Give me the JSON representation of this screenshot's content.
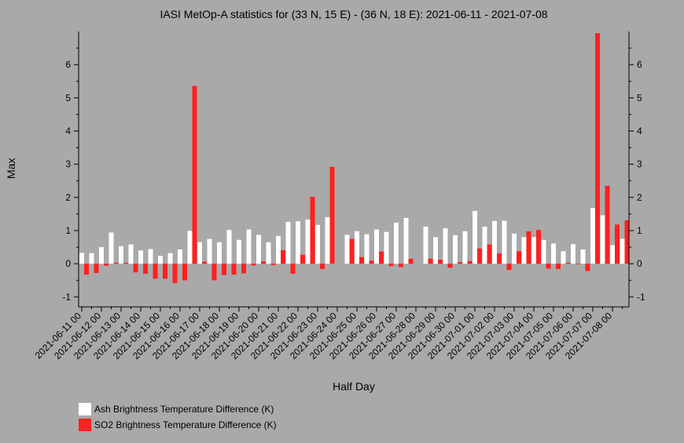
{
  "chart_data": {
    "type": "bar",
    "title": "IASI MetOp-A statistics for (33 N, 15 E) - (36 N, 18 E): 2021-06-11 - 2021-07-08",
    "xlabel": "Half Day",
    "ylabel": "Max",
    "ylim": [
      -1.3,
      7.0
    ],
    "yticks": [
      -1,
      0,
      1,
      2,
      3,
      4,
      5,
      6
    ],
    "categories": [
      "2021-06-11 00",
      "2021-06-11 12",
      "2021-06-12 00",
      "2021-06-12 12",
      "2021-06-13 00",
      "2021-06-13 12",
      "2021-06-14 00",
      "2021-06-14 12",
      "2021-06-15 00",
      "2021-06-15 12",
      "2021-06-16 00",
      "2021-06-16 12",
      "2021-06-17 00",
      "2021-06-17 12",
      "2021-06-18 00",
      "2021-06-18 12",
      "2021-06-19 00",
      "2021-06-19 12",
      "2021-06-20 00",
      "2021-06-20 12",
      "2021-06-21 00",
      "2021-06-21 12",
      "2021-06-22 00",
      "2021-06-22 12",
      "2021-06-23 00",
      "2021-06-23 12",
      "2021-06-24 00",
      "2021-06-24 12",
      "2021-06-25 00",
      "2021-06-25 12",
      "2021-06-26 00",
      "2021-06-26 12",
      "2021-06-27 00",
      "2021-06-27 12",
      "2021-06-28 00",
      "2021-06-28 12",
      "2021-06-29 00",
      "2021-06-29 12",
      "2021-06-30 00",
      "2021-06-30 12",
      "2021-07-01 00",
      "2021-07-01 12",
      "2021-07-02 00",
      "2021-07-02 12",
      "2021-07-03 00",
      "2021-07-03 12",
      "2021-07-04 00",
      "2021-07-04 12",
      "2021-07-05 00",
      "2021-07-05 12",
      "2021-07-06 00",
      "2021-07-06 12",
      "2021-07-07 00",
      "2021-07-07 12",
      "2021-07-08 00",
      "2021-07-08 12"
    ],
    "tick_labels": [
      "2021-06-11 00",
      "2021-06-12 00",
      "2021-06-13 00",
      "2021-06-14 00",
      "2021-06-15 00",
      "2021-06-16 00",
      "2021-06-17 00",
      "2021-06-18 00",
      "2021-06-19 00",
      "2021-06-20 00",
      "2021-06-21 00",
      "2021-06-22 00",
      "2021-06-23 00",
      "2021-06-24 00",
      "2021-06-25 00",
      "2021-06-26 00",
      "2021-06-27 00",
      "2021-06-28 00",
      "2021-06-29 00",
      "2021-06-30 00",
      "2021-07-01 00",
      "2021-07-02 00",
      "2021-07-03 00",
      "2021-07-04 00",
      "2021-07-05 00",
      "2021-07-06 00",
      "2021-07-07 00",
      "2021-07-08 00"
    ],
    "series": [
      {
        "name": "Ash Brightness Temperature Difference (K)",
        "color": "#ffffff",
        "values": [
          0.33,
          0.32,
          0.5,
          0.94,
          0.53,
          0.58,
          0.4,
          0.44,
          0.24,
          0.32,
          0.43,
          0.99,
          0.65,
          0.75,
          0.65,
          1.02,
          0.72,
          1.03,
          0.87,
          0.65,
          0.84,
          1.26,
          1.28,
          1.33,
          1.17,
          1.4,
          null,
          0.87,
          0.98,
          0.89,
          1.03,
          0.96,
          1.24,
          1.38,
          null,
          1.12,
          0.8,
          1.07,
          0.86,
          0.98,
          1.59,
          1.12,
          1.29,
          1.3,
          0.91,
          0.8,
          0.8,
          0.72,
          0.61,
          0.38,
          0.59,
          0.43,
          1.68,
          1.46,
          0.56,
          0.75
        ]
      },
      {
        "name": "SO2 Brightness Temperature Difference (K)",
        "color": "#ff2020",
        "values": [
          -0.33,
          -0.28,
          -0.06,
          0.03,
          0.03,
          -0.26,
          -0.3,
          -0.45,
          -0.45,
          -0.58,
          -0.5,
          5.36,
          0.06,
          -0.5,
          -0.34,
          -0.33,
          -0.29,
          -0.05,
          0.07,
          -0.04,
          0.41,
          -0.3,
          0.27,
          2.02,
          -0.16,
          2.92,
          null,
          0.75,
          0.2,
          0.09,
          0.37,
          -0.07,
          -0.1,
          0.15,
          null,
          0.15,
          0.12,
          -0.12,
          0.05,
          0.08,
          0.46,
          0.58,
          0.31,
          -0.19,
          0.38,
          0.98,
          1.02,
          -0.15,
          -0.16,
          0.03,
          -0.02,
          -0.22,
          6.95,
          2.35,
          1.18,
          1.31
        ]
      }
    ],
    "legend_position": "bottom-left",
    "grid": false
  }
}
